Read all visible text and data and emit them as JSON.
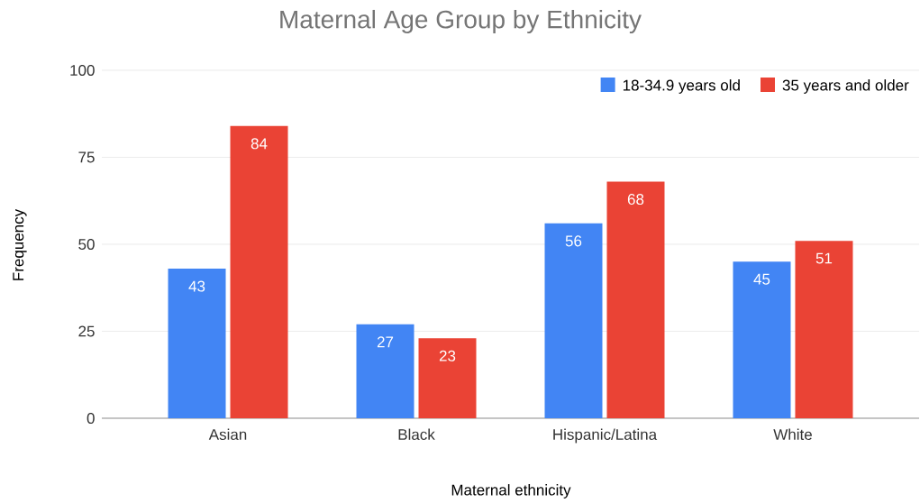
{
  "chart_data": {
    "type": "bar",
    "title": "Maternal Age Group by Ethnicity",
    "xlabel": "Maternal ethnicity",
    "ylabel": "Frequency",
    "categories": [
      "Asian",
      "Black",
      "Hispanic/Latina",
      "White"
    ],
    "series": [
      {
        "name": "18-34.9 years old",
        "color": "#4285f4",
        "values": [
          43,
          27,
          56,
          45
        ]
      },
      {
        "name": "35 years and older",
        "color": "#ea4335",
        "values": [
          84,
          23,
          68,
          51
        ]
      }
    ],
    "ylim": [
      0,
      100
    ],
    "yticks": [
      0,
      25,
      50,
      75,
      100
    ],
    "grid": "y",
    "legend": "top right",
    "data_labels": true
  }
}
